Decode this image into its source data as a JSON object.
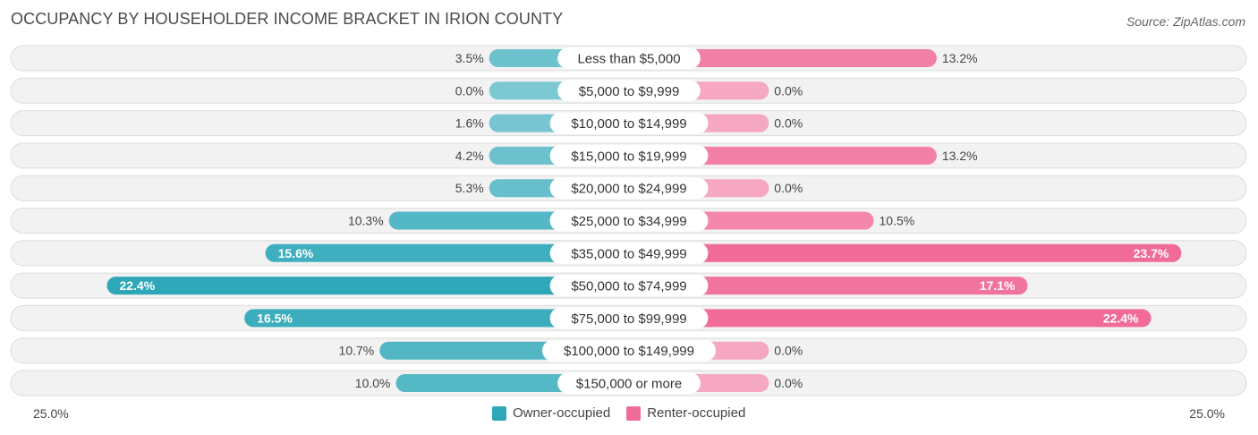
{
  "title": "OCCUPANCY BY HOUSEHOLDER INCOME BRACKET IN IRION COUNTY",
  "source": "Source: ZipAtlas.com",
  "colors": {
    "owner_light": "#7cc8d2",
    "owner_dark": "#2ea7b8",
    "renter_light": "#f6a8c2",
    "renter_dark": "#f06b98"
  },
  "axis": {
    "left_label": "25.0%",
    "right_label": "25.0%"
  },
  "legend": {
    "owner": "Owner-occupied",
    "renter": "Renter-occupied"
  },
  "chart_data": {
    "type": "bar",
    "orientation": "diverging-horizontal",
    "title": "OCCUPANCY BY HOUSEHOLDER INCOME BRACKET IN IRION COUNTY",
    "xlim": [
      -25,
      25
    ],
    "categories": [
      "Less than $5,000",
      "$5,000 to $9,999",
      "$10,000 to $14,999",
      "$15,000 to $19,999",
      "$20,000 to $24,999",
      "$25,000 to $34,999",
      "$35,000 to $49,999",
      "$50,000 to $74,999",
      "$75,000 to $99,999",
      "$100,000 to $149,999",
      "$150,000 or more"
    ],
    "series": [
      {
        "name": "Owner-occupied",
        "values": [
          3.5,
          0.0,
          1.6,
          4.2,
          5.3,
          10.3,
          15.6,
          22.4,
          16.5,
          10.7,
          10.0
        ],
        "labels": [
          "3.5%",
          "0.0%",
          "1.6%",
          "4.2%",
          "5.3%",
          "10.3%",
          "15.6%",
          "22.4%",
          "16.5%",
          "10.7%",
          "10.0%"
        ]
      },
      {
        "name": "Renter-occupied",
        "values": [
          13.2,
          0.0,
          0.0,
          13.2,
          0.0,
          10.5,
          23.7,
          17.1,
          22.4,
          0.0,
          0.0
        ],
        "labels": [
          "13.2%",
          "0.0%",
          "0.0%",
          "13.2%",
          "0.0%",
          "10.5%",
          "23.7%",
          "17.1%",
          "22.4%",
          "0.0%",
          "0.0%"
        ]
      }
    ]
  }
}
